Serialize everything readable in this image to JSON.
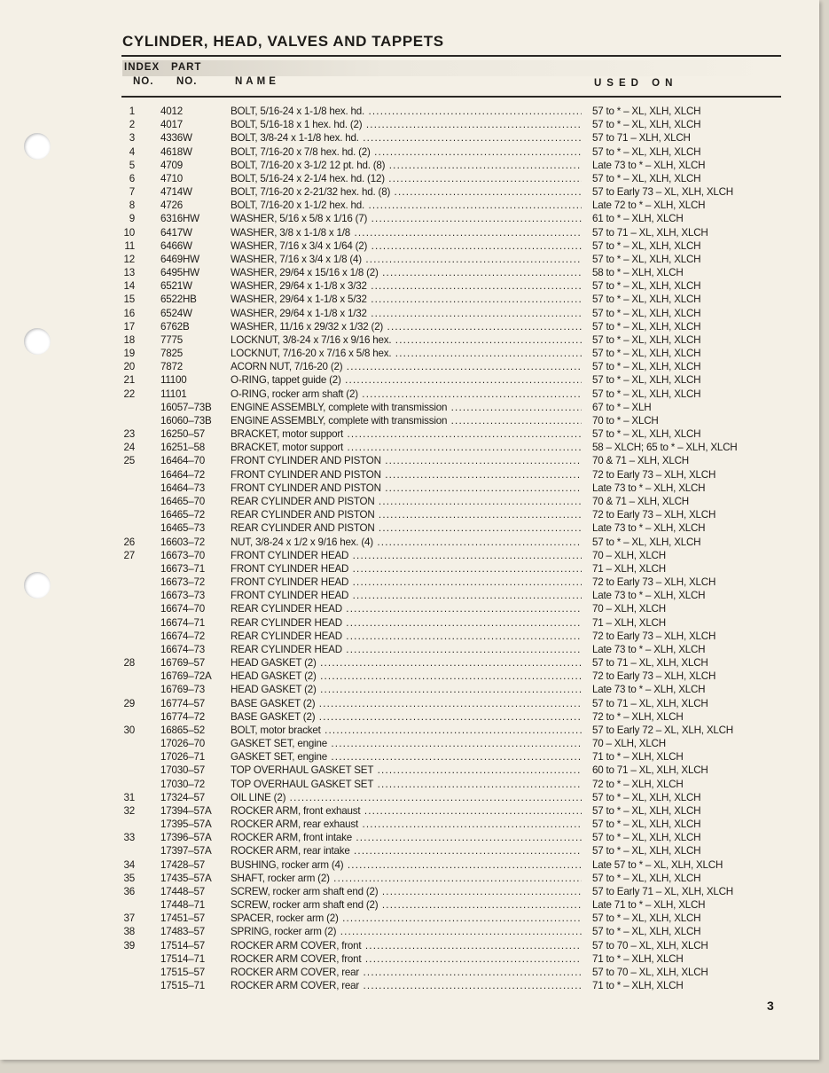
{
  "title": "CYLINDER, HEAD, VALVES AND TAPPETS",
  "headers": {
    "index_1": "INDEX",
    "index_2": "NO.",
    "part_1": "PART",
    "part_2": "NO.",
    "name": "NAME",
    "used_on": "USED ON"
  },
  "page_number": "3",
  "rows": [
    [
      "1",
      "4012",
      "BOLT, 5/16-24 x 1-1/8 hex. hd.",
      "57 to * – XL, XLH, XLCH"
    ],
    [
      "2",
      "4017",
      "BOLT, 5/16-18 x 1 hex. hd. (2)",
      "57 to * – XL, XLH, XLCH"
    ],
    [
      "3",
      "4336W",
      "BOLT, 3/8-24 x 1-1/8 hex. hd.",
      "57 to 71 – XLH, XLCH"
    ],
    [
      "4",
      "4618W",
      "BOLT, 7/16-20 x 7/8 hex. hd. (2)",
      "57 to * – XL, XLH, XLCH"
    ],
    [
      "5",
      "4709",
      "BOLT, 7/16-20 x 3-1/2 12 pt. hd. (8)",
      "Late 73 to * – XLH, XLCH"
    ],
    [
      "6",
      "4710",
      "BOLT, 5/16-24 x 2-1/4 hex. hd. (12)",
      "57 to * – XL, XLH, XLCH"
    ],
    [
      "7",
      "4714W",
      "BOLT, 7/16-20 x 2-21/32 hex. hd. (8)",
      "57 to Early 73 – XL, XLH, XLCH"
    ],
    [
      "8",
      "4726",
      "BOLT, 7/16-20 x 1-1/2 hex. hd.",
      "Late 72 to * – XLH, XLCH"
    ],
    [
      "9",
      "6316HW",
      "WASHER, 5/16 x 5/8 x 1/16 (7)",
      "61 to * – XLH, XLCH"
    ],
    [
      "10",
      "6417W",
      "WASHER, 3/8 x 1-1/8 x 1/8",
      "57 to 71 – XL, XLH, XLCH"
    ],
    [
      "11",
      "6466W",
      "WASHER, 7/16 x 3/4 x 1/64 (2)",
      "57 to * – XL, XLH, XLCH"
    ],
    [
      "12",
      "6469HW",
      "WASHER, 7/16 x 3/4 x 1/8 (4)",
      "57 to * – XL, XLH, XLCH"
    ],
    [
      "13",
      "6495HW",
      "WASHER, 29/64 x 15/16 x 1/8 (2)",
      "58 to * – XLH, XLCH"
    ],
    [
      "14",
      "6521W",
      "WASHER, 29/64 x 1-1/8 x 3/32",
      "57 to * – XL, XLH, XLCH"
    ],
    [
      "15",
      "6522HB",
      "WASHER, 29/64 x 1-1/8 x 5/32",
      "57 to * – XL, XLH, XLCH"
    ],
    [
      "16",
      "6524W",
      "WASHER, 29/64 x 1-1/8 x 1/32",
      "57 to * – XL, XLH, XLCH"
    ],
    [
      "17",
      "6762B",
      "WASHER, 11/16 x 29/32 x 1/32 (2)",
      "57 to * – XL, XLH, XLCH"
    ],
    [
      "18",
      "7775",
      "LOCKNUT, 3/8-24 x 7/16 x 9/16 hex.",
      "57 to * – XL, XLH, XLCH"
    ],
    [
      "19",
      "7825",
      "LOCKNUT, 7/16-20 x 7/16 x 5/8 hex.",
      "57 to * – XL, XLH, XLCH"
    ],
    [
      "20",
      "7872",
      "ACORN NUT, 7/16-20 (2)",
      "57 to * – XL, XLH, XLCH"
    ],
    [
      "21",
      "11100",
      "O-RING, tappet guide (2)",
      "57 to * – XL, XLH, XLCH"
    ],
    [
      "22",
      "11101",
      "O-RING, rocker arm shaft (2)",
      "57 to * – XL, XLH, XLCH"
    ],
    [
      "",
      "16057–73B",
      "ENGINE ASSEMBLY, complete with transmission",
      "67 to * – XLH"
    ],
    [
      "",
      "16060–73B",
      "ENGINE ASSEMBLY, complete with transmission",
      "70 to * – XLCH"
    ],
    [
      "23",
      "16250–57",
      "BRACKET, motor support",
      "57 to * – XL, XLH, XLCH"
    ],
    [
      "24",
      "16251–58",
      "BRACKET, motor support",
      "58 – XLCH; 65 to * – XLH, XLCH"
    ],
    [
      "25",
      "16464–70",
      "FRONT CYLINDER AND PISTON",
      "70 & 71 – XLH, XLCH"
    ],
    [
      "",
      "16464–72",
      "FRONT CYLINDER AND PISTON",
      "72 to Early 73 – XLH, XLCH"
    ],
    [
      "",
      "16464–73",
      "FRONT CYLINDER AND PISTON",
      "Late 73 to * – XLH, XLCH"
    ],
    [
      "",
      "16465–70",
      "REAR CYLINDER AND PISTON",
      "70 & 71 – XLH, XLCH"
    ],
    [
      "",
      "16465–72",
      "REAR CYLINDER AND PISTON",
      "72 to Early 73 – XLH, XLCH"
    ],
    [
      "",
      "16465–73",
      "REAR CYLINDER AND PISTON",
      "Late 73 to * – XLH, XLCH"
    ],
    [
      "26",
      "16603–72",
      "NUT, 3/8-24 x 1/2 x 9/16 hex. (4)",
      "57 to * – XL, XLH, XLCH"
    ],
    [
      "27",
      "16673–70",
      "FRONT CYLINDER HEAD",
      "70 – XLH, XLCH"
    ],
    [
      "",
      "16673–71",
      "FRONT CYLINDER HEAD",
      "71 – XLH, XLCH"
    ],
    [
      "",
      "16673–72",
      "FRONT CYLINDER HEAD",
      "72 to Early 73 – XLH, XLCH"
    ],
    [
      "",
      "16673–73",
      "FRONT CYLINDER HEAD",
      "Late 73 to * – XLH, XLCH"
    ],
    [
      "",
      "16674–70",
      "REAR CYLINDER HEAD",
      "70 – XLH, XLCH"
    ],
    [
      "",
      "16674–71",
      "REAR CYLINDER HEAD",
      "71 – XLH, XLCH"
    ],
    [
      "",
      "16674–72",
      "REAR CYLINDER HEAD",
      "72 to Early 73 – XLH, XLCH"
    ],
    [
      "",
      "16674–73",
      "REAR CYLINDER HEAD",
      "Late 73 to * – XLH, XLCH"
    ],
    [
      "28",
      "16769–57",
      "HEAD GASKET (2)",
      "57 to 71 – XL, XLH, XLCH"
    ],
    [
      "",
      "16769–72A",
      "HEAD GASKET (2)",
      "72 to Early 73 – XLH, XLCH"
    ],
    [
      "",
      "16769–73",
      "HEAD GASKET (2)",
      "Late 73 to * – XLH, XLCH"
    ],
    [
      "29",
      "16774–57",
      "BASE GASKET (2)",
      "57 to 71 – XL, XLH, XLCH"
    ],
    [
      "",
      "16774–72",
      "BASE GASKET (2)",
      "72 to * – XLH, XLCH"
    ],
    [
      "30",
      "16865–52",
      "BOLT, motor bracket",
      "57 to Early 72 – XL, XLH, XLCH"
    ],
    [
      "",
      "17026–70",
      "GASKET SET, engine",
      "70 – XLH, XLCH"
    ],
    [
      "",
      "17026–71",
      "GASKET SET, engine",
      "71 to * – XLH, XLCH"
    ],
    [
      "",
      "17030–57",
      "TOP OVERHAUL GASKET SET",
      "60 to 71 – XL, XLH, XLCH"
    ],
    [
      "",
      "17030–72",
      "TOP OVERHAUL GASKET SET",
      "72 to * – XLH, XLCH"
    ],
    [
      "31",
      "17324–57",
      "OIL LINE (2)",
      "57 to * – XL, XLH, XLCH"
    ],
    [
      "32",
      "17394–57A",
      "ROCKER ARM, front exhaust",
      "57 to * – XL, XLH, XLCH"
    ],
    [
      "",
      "17395–57A",
      "ROCKER ARM, rear exhaust",
      "57 to * – XL, XLH, XLCH"
    ],
    [
      "33",
      "17396–57A",
      "ROCKER ARM, front intake",
      "57 to * – XL, XLH, XLCH"
    ],
    [
      "",
      "17397–57A",
      "ROCKER ARM, rear intake",
      "57 to * – XL, XLH, XLCH"
    ],
    [
      "34",
      "17428–57",
      "BUSHING, rocker arm (4)",
      "Late 57 to * – XL, XLH, XLCH"
    ],
    [
      "35",
      "17435–57A",
      "SHAFT, rocker arm (2)",
      "57 to * – XL, XLH, XLCH"
    ],
    [
      "36",
      "17448–57",
      "SCREW, rocker arm shaft end (2)",
      "57 to Early 71 – XL, XLH, XLCH"
    ],
    [
      "",
      "17448–71",
      "SCREW, rocker arm shaft end (2)",
      "Late 71 to * – XLH, XLCH"
    ],
    [
      "37",
      "17451–57",
      "SPACER, rocker arm (2)",
      "57 to * – XL, XLH, XLCH"
    ],
    [
      "38",
      "17483–57",
      "SPRING, rocker arm (2)",
      "57 to * – XL, XLH, XLCH"
    ],
    [
      "39",
      "17514–57",
      "ROCKER ARM COVER, front",
      "57 to 70 – XL, XLH, XLCH"
    ],
    [
      "",
      "17514–71",
      "ROCKER ARM COVER, front",
      "71 to * – XLH, XLCH"
    ],
    [
      "",
      "17515–57",
      "ROCKER ARM COVER, rear",
      "57 to 70 – XL, XLH, XLCH"
    ],
    [
      "",
      "17515–71",
      "ROCKER ARM COVER, rear",
      "71 to * – XLH, XLCH"
    ]
  ]
}
